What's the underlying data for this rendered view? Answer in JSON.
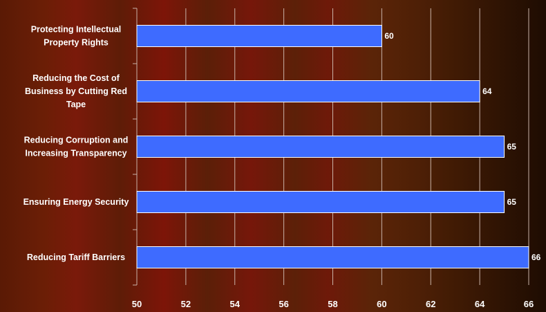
{
  "chart_data": {
    "type": "bar",
    "orientation": "horizontal",
    "categories": [
      [
        "Protecting Intellectual",
        "Property Rights"
      ],
      [
        "Reducing the Cost of",
        "Business by Cutting Red",
        "Tape"
      ],
      [
        "Reducing Corruption and",
        "Increasing Transparency"
      ],
      [
        "Ensuring Energy Security"
      ],
      [
        "Reducing Tariff Barriers"
      ]
    ],
    "values": [
      60,
      64,
      65,
      65,
      66
    ],
    "data_labels": [
      "60",
      "64",
      "65",
      "65",
      "66"
    ],
    "xlim": [
      50,
      66
    ],
    "xticks": [
      50,
      52,
      54,
      56,
      58,
      60,
      62,
      64,
      66
    ],
    "xtick_labels": [
      "50",
      "52",
      "54",
      "56",
      "58",
      "60",
      "62",
      "64",
      "66"
    ],
    "grid": "vertical",
    "bar_color": "#3e6bff",
    "title": "",
    "xlabel": "",
    "ylabel": ""
  }
}
